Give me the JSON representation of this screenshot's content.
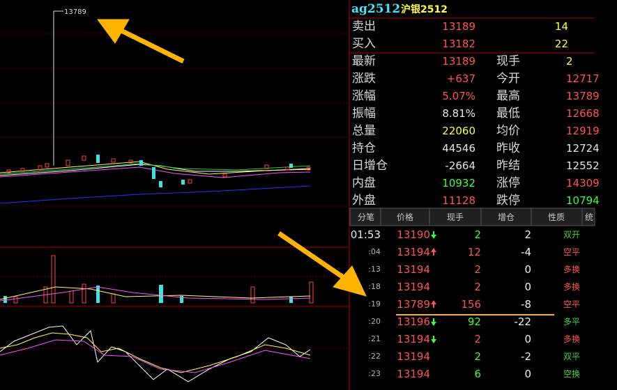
{
  "chart_annotation": "13789",
  "quote": {
    "symbol": "ag2512",
    "name": "沪银2512",
    "book": [
      {
        "label": "卖出",
        "price": "13189",
        "volume": "14"
      },
      {
        "label": "买入",
        "price": "13182",
        "volume": "22"
      }
    ],
    "rows": [
      {
        "label": "最新",
        "value": "13189",
        "value_color": "#ff5252",
        "label2": "现手",
        "value2": "2",
        "value2_color": "#ffff3c"
      },
      {
        "label": "涨跌",
        "value": "+637",
        "value_color": "#ff5252",
        "label2": "今开",
        "value2": "12717",
        "value2_color": "#ff5252"
      },
      {
        "label": "涨幅",
        "value": "5.07%",
        "value_color": "#ff5252",
        "label2": "最高",
        "value2": "13789",
        "value2_color": "#ff5252"
      },
      {
        "label": "振幅",
        "value": "8.81%",
        "value_color": "#e6e6e6",
        "label2": "最低",
        "value2": "12668",
        "value2_color": "#ff5252"
      },
      {
        "label": "总量",
        "value": "22060",
        "value_color": "#ffff3c",
        "label2": "均价",
        "value2": "12919",
        "value2_color": "#ff5252"
      },
      {
        "label": "持仓",
        "value": "44546",
        "value_color": "#e6e6e6",
        "label2": "昨收",
        "value2": "12724",
        "value2_color": "#e6e6e6"
      },
      {
        "label": "日增仓",
        "value": "-2664",
        "value_color": "#e6e6e6",
        "label2": "昨结",
        "value2": "12552",
        "value2_color": "#e6e6e6"
      },
      {
        "label": "内盘",
        "value": "10932",
        "value_color": "#3cff3c",
        "label2": "涨停",
        "value2": "14309",
        "value2_color": "#ff5252"
      },
      {
        "label": "外盘",
        "value": "11128",
        "value_color": "#ff5252",
        "label2": "跌停",
        "value2": "10794",
        "value2_color": "#3cff3c"
      }
    ]
  },
  "ticks": {
    "headers": [
      "分笔",
      "价格",
      "现手",
      "增仓",
      "性质",
      "统"
    ],
    "rows": [
      {
        "time": "01:53",
        "price": "13190",
        "arrow": "down",
        "volume": "2",
        "volume_color": "#3cff3c",
        "change": "2",
        "nature": "双开",
        "nature_color": "#3cd23c"
      },
      {
        "time": ":04",
        "price": "13194",
        "arrow": "up",
        "volume": "12",
        "volume_color": "#ff5252",
        "change": "-4",
        "nature": "空平",
        "nature_color": "#ff5252"
      },
      {
        "time": ":13",
        "price": "13194",
        "arrow": null,
        "volume": "2",
        "volume_color": "#ff5252",
        "change": "0",
        "nature": "多换",
        "nature_color": "#ff5252"
      },
      {
        "time": ":18",
        "price": "13194",
        "arrow": null,
        "volume": "2",
        "volume_color": "#ff5252",
        "change": "0",
        "nature": "多换",
        "nature_color": "#ff5252"
      },
      {
        "time": ":19",
        "price": "13789",
        "arrow": "up",
        "volume": "156",
        "volume_color": "#ff5252",
        "change": "-8",
        "nature": "空平",
        "nature_color": "#ff5252"
      },
      {
        "time": ":20",
        "price": "13196",
        "arrow": "down",
        "volume": "92",
        "volume_color": "#3cff3c",
        "change": "-22",
        "nature": "多平",
        "nature_color": "#3cd23c"
      },
      {
        "time": ":21",
        "price": "13194",
        "arrow": "down",
        "volume": "2",
        "volume_color": "#ff5252",
        "change": "0",
        "nature": "多换",
        "nature_color": "#ff5252"
      },
      {
        "time": ":22",
        "price": "13194",
        "arrow": null,
        "volume": "2",
        "volume_color": "#3cff3c",
        "change": "-2",
        "nature": "双平",
        "nature_color": "#3cd23c"
      },
      {
        "time": ":23",
        "price": "13194",
        "arrow": null,
        "volume": "6",
        "volume_color": "#3cff3c",
        "change": "0",
        "nature": "空换",
        "nature_color": "#3cd23c"
      }
    ]
  }
}
